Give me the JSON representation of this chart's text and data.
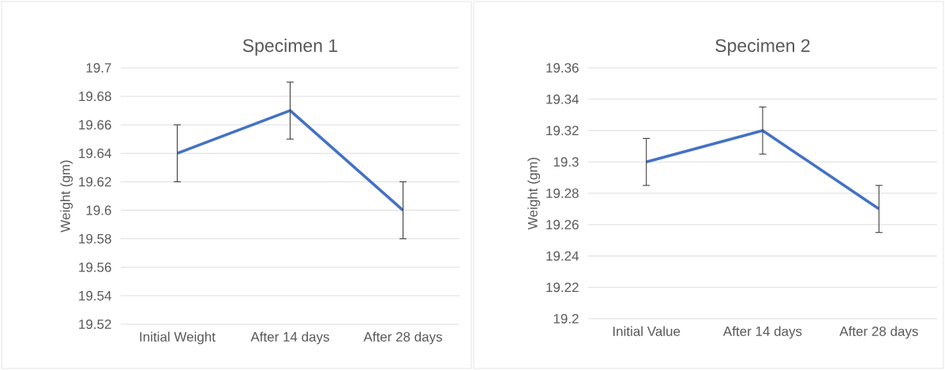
{
  "chart_data": [
    {
      "type": "line",
      "title": "Specimen 1",
      "ylabel": "Weight (gm)",
      "categories": [
        "Initial Weight",
        "After 14 days",
        "After 28 days"
      ],
      "values": [
        19.64,
        19.67,
        19.6
      ],
      "errors": [
        0.02,
        0.02,
        0.02
      ],
      "color": "#4472c4",
      "ylim": [
        19.52,
        19.7
      ],
      "yticks": [
        19.52,
        19.54,
        19.56,
        19.58,
        19.6,
        19.62,
        19.64,
        19.66,
        19.68,
        19.7
      ],
      "grid": "y",
      "line_style": "solid"
    },
    {
      "type": "line",
      "title": "Specimen 2",
      "ylabel": "Weight (gm)",
      "categories": [
        "Initial Value",
        "After 14 days",
        "After 28 days"
      ],
      "values": [
        19.3,
        19.32,
        19.27
      ],
      "errors": [
        0.015,
        0.015,
        0.015
      ],
      "color": "#4472c4",
      "ylim": [
        19.2,
        19.36
      ],
      "yticks": [
        19.2,
        19.22,
        19.24,
        19.26,
        19.28,
        19.3,
        19.32,
        19.34,
        19.36
      ],
      "grid": "y",
      "line_style": "solid"
    }
  ]
}
